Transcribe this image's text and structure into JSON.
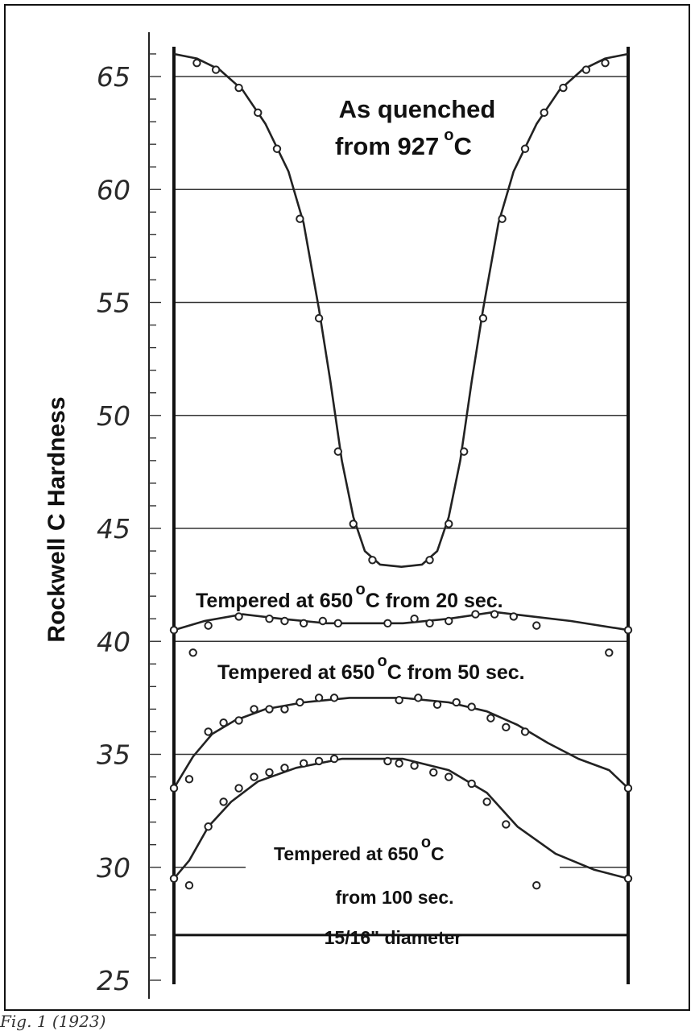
{
  "chart_data": {
    "type": "scatter",
    "ylabel": "Rockwell C Hardness",
    "ylim": [
      25,
      67
    ],
    "yticks": [
      "25",
      "30",
      "35",
      "40",
      "45",
      "50",
      "55",
      "60",
      "65"
    ],
    "xlabel": "",
    "grid": "horizontal lines at 65, 60, 55, 50, 45, 40, 35, 30, 27",
    "annotations": {
      "quenched": [
        "As quenched",
        "from 927",
        "o",
        "C"
      ],
      "t20": [
        "Tempered at 650",
        "o",
        "C  from 20 sec."
      ],
      "t50": [
        "Tempered at 650",
        "o",
        "C from 50 sec."
      ],
      "t100": [
        "Tempered at 650",
        "o",
        "C",
        "from 100 sec.",
        "15/16\" diameter"
      ]
    },
    "series": [
      {
        "id": "quenched",
        "points": [
          [
            0.03,
            65.6
          ],
          [
            0.055,
            65.3
          ],
          [
            0.085,
            64.5
          ],
          [
            0.11,
            63.4
          ],
          [
            0.135,
            61.8
          ],
          [
            0.165,
            58.7
          ],
          [
            0.19,
            54.3
          ],
          [
            0.215,
            48.4
          ],
          [
            0.235,
            45.2
          ],
          [
            0.26,
            43.6
          ],
          [
            0.335,
            43.6
          ],
          [
            0.36,
            45.2
          ],
          [
            0.38,
            48.4
          ],
          [
            0.405,
            54.3
          ],
          [
            0.43,
            58.7
          ],
          [
            0.46,
            61.8
          ],
          [
            0.485,
            63.4
          ],
          [
            0.51,
            64.5
          ],
          [
            0.54,
            65.3
          ],
          [
            0.565,
            65.6
          ]
        ],
        "curve": [
          [
            0,
            66.0
          ],
          [
            0.03,
            65.8
          ],
          [
            0.06,
            65.3
          ],
          [
            0.09,
            64.4
          ],
          [
            0.12,
            62.9
          ],
          [
            0.15,
            60.8
          ],
          [
            0.17,
            58.5
          ],
          [
            0.19,
            54.7
          ],
          [
            0.205,
            51.5
          ],
          [
            0.22,
            48.0
          ],
          [
            0.235,
            45.5
          ],
          [
            0.25,
            44.0
          ],
          [
            0.27,
            43.4
          ],
          [
            0.298,
            43.3
          ],
          [
            0.325,
            43.4
          ],
          [
            0.345,
            44.0
          ],
          [
            0.36,
            45.5
          ],
          [
            0.375,
            48.0
          ],
          [
            0.39,
            51.5
          ],
          [
            0.405,
            54.7
          ],
          [
            0.425,
            58.5
          ],
          [
            0.445,
            60.8
          ],
          [
            0.475,
            62.9
          ],
          [
            0.505,
            64.4
          ],
          [
            0.535,
            65.3
          ],
          [
            0.565,
            65.8
          ],
          [
            0.595,
            66.0
          ]
        ]
      },
      {
        "id": "tempered-20s",
        "points": [
          [
            0,
            40.5
          ],
          [
            0.045,
            40.7
          ],
          [
            0.085,
            41.1
          ],
          [
            0.125,
            41.0
          ],
          [
            0.145,
            40.9
          ],
          [
            0.17,
            40.8
          ],
          [
            0.195,
            40.9
          ],
          [
            0.215,
            40.8
          ],
          [
            0.28,
            40.8
          ],
          [
            0.315,
            41.0
          ],
          [
            0.335,
            40.8
          ],
          [
            0.36,
            40.9
          ],
          [
            0.395,
            41.2
          ],
          [
            0.42,
            41.2
          ],
          [
            0.445,
            41.1
          ],
          [
            0.475,
            40.7
          ],
          [
            0.595,
            40.5
          ]
        ],
        "curve": [
          [
            0,
            40.5
          ],
          [
            0.04,
            40.9
          ],
          [
            0.09,
            41.2
          ],
          [
            0.14,
            41.0
          ],
          [
            0.2,
            40.8
          ],
          [
            0.3,
            40.8
          ],
          [
            0.36,
            41.0
          ],
          [
            0.42,
            41.3
          ],
          [
            0.47,
            41.1
          ],
          [
            0.52,
            40.9
          ],
          [
            0.595,
            40.5
          ]
        ]
      },
      {
        "id": "tempered-50s",
        "points": [
          [
            0.025,
            39.5
          ],
          [
            0.57,
            39.5
          ],
          [
            0,
            33.5
          ],
          [
            0.02,
            33.9
          ],
          [
            0.045,
            36.0
          ],
          [
            0.065,
            36.4
          ],
          [
            0.085,
            36.5
          ],
          [
            0.105,
            37.0
          ],
          [
            0.125,
            37.0
          ],
          [
            0.145,
            37.0
          ],
          [
            0.165,
            37.3
          ],
          [
            0.19,
            37.5
          ],
          [
            0.21,
            37.5
          ],
          [
            0.295,
            37.4
          ],
          [
            0.32,
            37.5
          ],
          [
            0.345,
            37.2
          ],
          [
            0.37,
            37.3
          ],
          [
            0.39,
            37.1
          ],
          [
            0.415,
            36.6
          ],
          [
            0.435,
            36.2
          ],
          [
            0.46,
            36.0
          ],
          [
            0.595,
            33.5
          ]
        ],
        "curve": [
          [
            0,
            33.5
          ],
          [
            0.025,
            34.9
          ],
          [
            0.05,
            35.9
          ],
          [
            0.08,
            36.5
          ],
          [
            0.12,
            37.0
          ],
          [
            0.17,
            37.3
          ],
          [
            0.23,
            37.5
          ],
          [
            0.3,
            37.5
          ],
          [
            0.36,
            37.3
          ],
          [
            0.41,
            36.9
          ],
          [
            0.45,
            36.3
          ],
          [
            0.49,
            35.5
          ],
          [
            0.53,
            34.8
          ],
          [
            0.57,
            34.3
          ],
          [
            0.595,
            33.5
          ]
        ]
      },
      {
        "id": "tempered-100s",
        "points": [
          [
            0,
            29.5
          ],
          [
            0.02,
            29.2
          ],
          [
            0.045,
            31.8
          ],
          [
            0.065,
            32.9
          ],
          [
            0.085,
            33.5
          ],
          [
            0.105,
            34.0
          ],
          [
            0.125,
            34.2
          ],
          [
            0.145,
            34.4
          ],
          [
            0.17,
            34.6
          ],
          [
            0.19,
            34.7
          ],
          [
            0.21,
            34.8
          ],
          [
            0.28,
            34.7
          ],
          [
            0.295,
            34.6
          ],
          [
            0.315,
            34.5
          ],
          [
            0.34,
            34.2
          ],
          [
            0.36,
            34.0
          ],
          [
            0.39,
            33.7
          ],
          [
            0.41,
            32.9
          ],
          [
            0.435,
            31.9
          ],
          [
            0.475,
            29.2
          ],
          [
            0.595,
            29.5
          ]
        ],
        "curve": [
          [
            0,
            29.5
          ],
          [
            0.02,
            30.3
          ],
          [
            0.045,
            31.8
          ],
          [
            0.075,
            32.9
          ],
          [
            0.11,
            33.8
          ],
          [
            0.16,
            34.4
          ],
          [
            0.22,
            34.8
          ],
          [
            0.3,
            34.8
          ],
          [
            0.36,
            34.3
          ],
          [
            0.41,
            33.3
          ],
          [
            0.45,
            31.8
          ],
          [
            0.5,
            30.6
          ],
          [
            0.55,
            29.9
          ],
          [
            0.595,
            29.5
          ]
        ]
      }
    ]
  },
  "caption": "Fig. 1 (1923)"
}
